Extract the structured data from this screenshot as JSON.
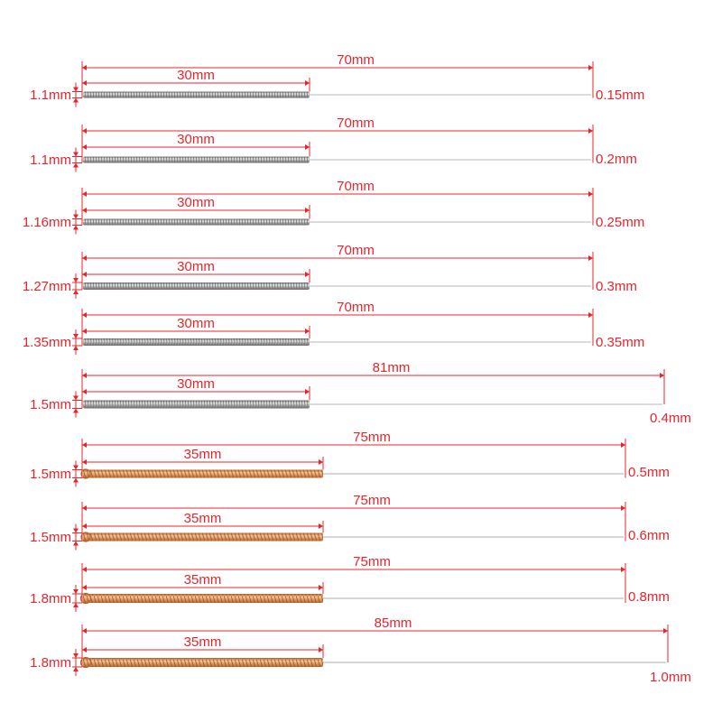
{
  "colors": {
    "annotation": "#e8242b",
    "steel_light": "#e4e4e4",
    "steel_mid": "#a9a9a9",
    "steel_dark": "#6f6f6f",
    "copper_light": "#f5c59a",
    "copper_mid": "#e2965c",
    "copper_dark": "#b8662e",
    "needle": "#c8c8c8"
  },
  "needles": [
    {
      "handle_type": "steel",
      "coil_label": "30mm",
      "total_label": "70mm",
      "handle_diameter": "1.1mm",
      "needle_diameter": "0.15mm"
    },
    {
      "handle_type": "steel",
      "coil_label": "30mm",
      "total_label": "70mm",
      "handle_diameter": "1.1mm",
      "needle_diameter": "0.2mm"
    },
    {
      "handle_type": "steel",
      "coil_label": "30mm",
      "total_label": "70mm",
      "handle_diameter": "1.16mm",
      "needle_diameter": "0.25mm"
    },
    {
      "handle_type": "steel",
      "coil_label": "30mm",
      "total_label": "70mm",
      "handle_diameter": "1.27mm",
      "needle_diameter": "0.3mm"
    },
    {
      "handle_type": "steel",
      "coil_label": "30mm",
      "total_label": "70mm",
      "handle_diameter": "1.35mm",
      "needle_diameter": "0.35mm"
    },
    {
      "handle_type": "steel",
      "coil_label": "30mm",
      "total_label": "81mm",
      "handle_diameter": "1.5mm",
      "needle_diameter": "0.4mm"
    },
    {
      "handle_type": "copper",
      "coil_label": "35mm",
      "total_label": "75mm",
      "handle_diameter": "1.5mm",
      "needle_diameter": "0.5mm"
    },
    {
      "handle_type": "copper",
      "coil_label": "35mm",
      "total_label": "75mm",
      "handle_diameter": "1.5mm",
      "needle_diameter": "0.6mm"
    },
    {
      "handle_type": "copper",
      "coil_label": "35mm",
      "total_label": "75mm",
      "handle_diameter": "1.8mm",
      "needle_diameter": "0.8mm"
    },
    {
      "handle_type": "copper",
      "coil_label": "35mm",
      "total_label": "85mm",
      "handle_diameter": "1.8mm",
      "needle_diameter": "1.0mm"
    }
  ]
}
